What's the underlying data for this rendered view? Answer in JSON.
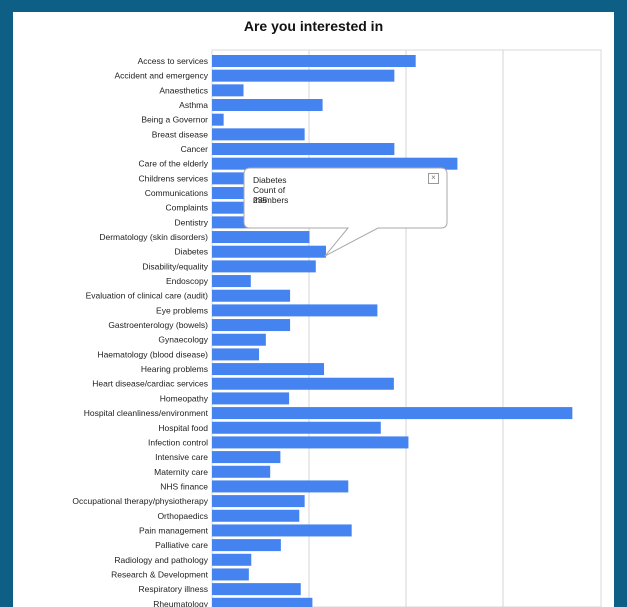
{
  "chart_data": {
    "type": "bar",
    "orientation": "horizontal",
    "title": "Are you interested in",
    "categories": [
      "Access to services",
      "Accident and emergency",
      "Anaesthetics",
      "Asthma",
      "Being a Governor",
      "Breast disease",
      "Cancer",
      "Care of the elderly",
      "Childrens services",
      "Communications",
      "Complaints",
      "Dentistry",
      "Dermatology (skin disorders)",
      "Diabetes",
      "Disability/equality",
      "Endoscopy",
      "Evaluation of clinical care (audit)",
      "Eye problems",
      "Gastroenterology (bowels)",
      "Gynaecology",
      "Haematology (blood disease)",
      "Hearing problems",
      "Heart disease/cardiac services",
      "Homeopathy",
      "Hospital cleanliness/environment",
      "Hospital food",
      "Infection control",
      "Intensive care",
      "Maternity care",
      "NHS finance",
      "Occupational therapy/physiotherapy",
      "Orthopaedics",
      "Pain management",
      "Palliative care",
      "Radiology and pathology",
      "Research & Development",
      "Respiratory illness",
      "Rheumatology"
    ],
    "series": [
      {
        "values": [
          420,
          376,
          65,
          228,
          24,
          191,
          376,
          506,
          272,
          262,
          258,
          252,
          201,
          235,
          214,
          80,
          161,
          341,
          161,
          111,
          97,
          231,
          375,
          159,
          743,
          348,
          405,
          141,
          120,
          281,
          191,
          180,
          288,
          142,
          81,
          76,
          183,
          207
        ]
      }
    ],
    "xlim": [
      0,
      800
    ],
    "x_gridlines": [
      200,
      400,
      600
    ],
    "grid": true,
    "bar_color": "#4583f0",
    "tooltip": {
      "category": "Diabetes",
      "series_label": "Count of members",
      "value": "235"
    }
  }
}
